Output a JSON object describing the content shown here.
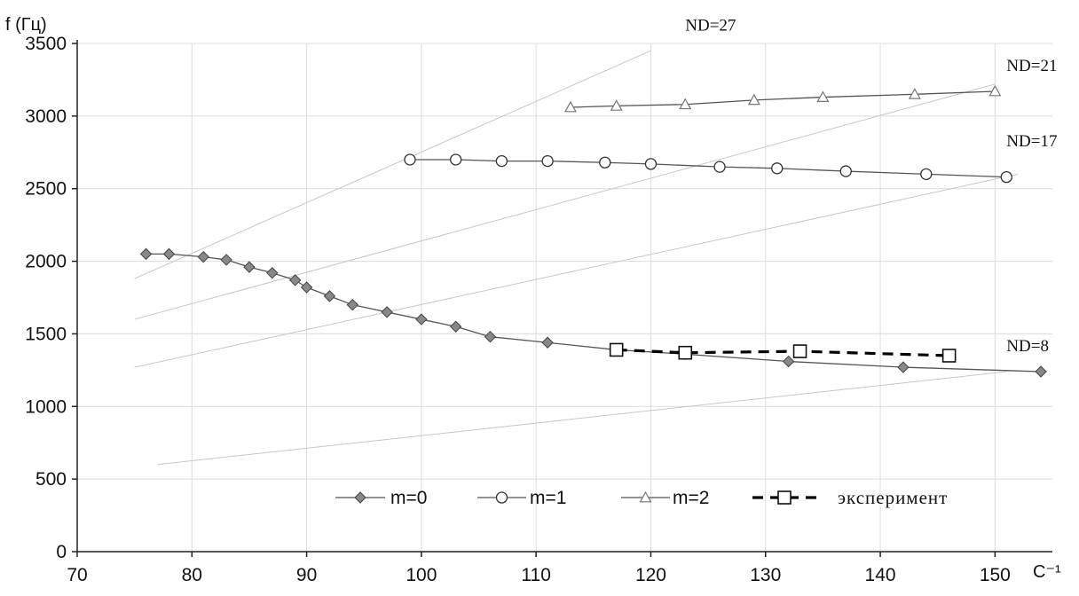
{
  "chart_data": {
    "type": "line",
    "ylabel": "f (Гц)",
    "xlabel": "C⁻¹",
    "xlim": [
      70,
      155
    ],
    "ylim": [
      0,
      3500
    ],
    "xticks": [
      70,
      80,
      90,
      100,
      110,
      120,
      130,
      140,
      150
    ],
    "yticks": [
      0,
      500,
      1000,
      1500,
      2000,
      2500,
      3000,
      3500
    ],
    "grid": true,
    "legend_position": "bottom",
    "series": [
      {
        "name": "m=0",
        "marker": "diamond",
        "color": "#555555",
        "marker_color": "#888888",
        "x": [
          76,
          78,
          81,
          83,
          85,
          87,
          89,
          90,
          92,
          94,
          97,
          100,
          103,
          106,
          111,
          117,
          123,
          132,
          142,
          154
        ],
        "y": [
          2050,
          2050,
          2030,
          2010,
          1960,
          1920,
          1870,
          1820,
          1760,
          1700,
          1650,
          1600,
          1550,
          1480,
          1440,
          1390,
          1360,
          1310,
          1270,
          1240
        ]
      },
      {
        "name": "m=1",
        "marker": "circle",
        "color": "#555555",
        "marker_color": "#ffffff",
        "x": [
          99,
          103,
          107,
          111,
          116,
          120,
          126,
          131,
          137,
          144,
          151
        ],
        "y": [
          2700,
          2700,
          2690,
          2690,
          2680,
          2670,
          2650,
          2640,
          2620,
          2600,
          2580
        ]
      },
      {
        "name": "m=2",
        "marker": "triangle",
        "color": "#555555",
        "marker_color": "#ffffff",
        "x": [
          113,
          117,
          123,
          129,
          135,
          143,
          150
        ],
        "y": [
          3060,
          3070,
          3080,
          3110,
          3130,
          3150,
          3170
        ]
      },
      {
        "name": "эксперимент",
        "marker": "square",
        "color": "#000000",
        "marker_color": "#ffffff",
        "dashed": true,
        "x": [
          117,
          123,
          133,
          146
        ],
        "y": [
          1390,
          1370,
          1380,
          1350
        ]
      }
    ],
    "nd_lines": [
      {
        "label": "ND=27",
        "x": [
          75,
          120
        ],
        "y": [
          1880,
          3450
        ]
      },
      {
        "label": "ND=21",
        "x": [
          75,
          150
        ],
        "y": [
          1600,
          3220
        ]
      },
      {
        "label": "ND=17",
        "x": [
          75,
          152
        ],
        "y": [
          1270,
          2600
        ]
      },
      {
        "label": "ND=8",
        "x": [
          77,
          151
        ],
        "y": [
          600,
          1240
        ]
      }
    ],
    "nd_label_positions": [
      {
        "label": "ND=27",
        "x": 123,
        "y": 3590
      },
      {
        "label": "ND=21",
        "x": 151,
        "y": 3310
      },
      {
        "label": "ND=17",
        "x": 151,
        "y": 2790
      },
      {
        "label": "ND=8",
        "x": 151,
        "y": 1380
      }
    ]
  }
}
